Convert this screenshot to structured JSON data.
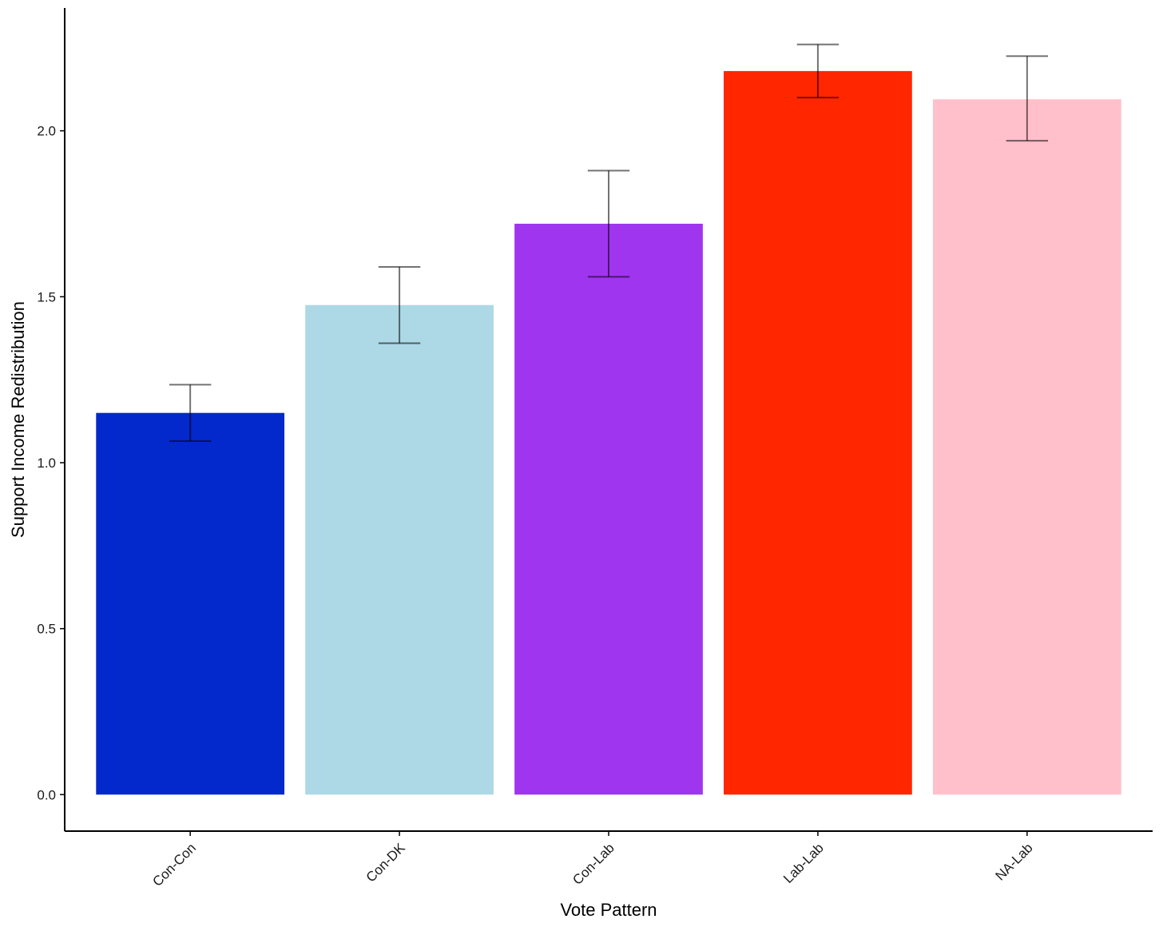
{
  "chart_data": {
    "type": "bar",
    "xlabel": "Vote Pattern",
    "ylabel": "Support Income Redistribution",
    "ylim": [
      -0.11,
      2.37
    ],
    "yticks": [
      0.0,
      0.5,
      1.0,
      1.5,
      2.0
    ],
    "ytick_labels": [
      "0.0",
      "0.5",
      "1.0",
      "1.5",
      "2.0"
    ],
    "categories": [
      "Con-Con",
      "Con-DK",
      "Con-Lab",
      "Lab-Lab",
      "NA-Lab"
    ],
    "values": [
      1.15,
      1.475,
      1.72,
      2.18,
      2.095
    ],
    "error_low": [
      1.065,
      1.36,
      1.56,
      2.1,
      1.97
    ],
    "error_high": [
      1.235,
      1.59,
      1.88,
      2.26,
      2.225
    ],
    "colors": [
      "#0328CC",
      "#ADD8E6",
      "#A035F0",
      "#FF2600",
      "#FFC0CB"
    ],
    "grid": false,
    "legend": "none"
  }
}
